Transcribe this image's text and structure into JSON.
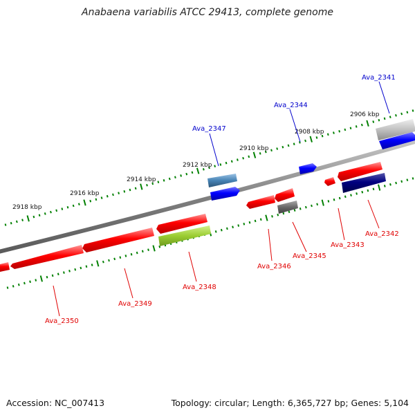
{
  "title": "Anabaena variabilis ATCC 29413, complete genome",
  "accession": "Accession: NC_007413",
  "stats": "Topology: circular; Length: 6,365,727 bp; Genes: 5,104",
  "ruler_labels": [
    "2918 kbp",
    "2916 kbp",
    "2914 kbp",
    "2912 kbp",
    "2910 kbp",
    "2908 kbp",
    "2906 kbp"
  ],
  "colors": {
    "backbone": "#808080",
    "tick": "#008000",
    "label_forward": "#0000cc",
    "label_reverse": "#e00000",
    "gene_red": "#ff0000",
    "gene_blue": "#0000ff",
    "gene_navy": "#000080",
    "gene_steel": "#4682b4",
    "gene_gray": "#c0c0c0",
    "gene_dark_gray": "#696969",
    "gene_yellow_green": "#9acd32"
  },
  "gene_labels_forward": [
    "Ava_2341",
    "Ava_2344",
    "Ava_2347"
  ],
  "gene_labels_reverse": [
    "Ava_2342",
    "Ava_2343",
    "Ava_2345",
    "Ava_2346",
    "Ava_2348",
    "Ava_2349",
    "Ava_2350"
  ]
}
